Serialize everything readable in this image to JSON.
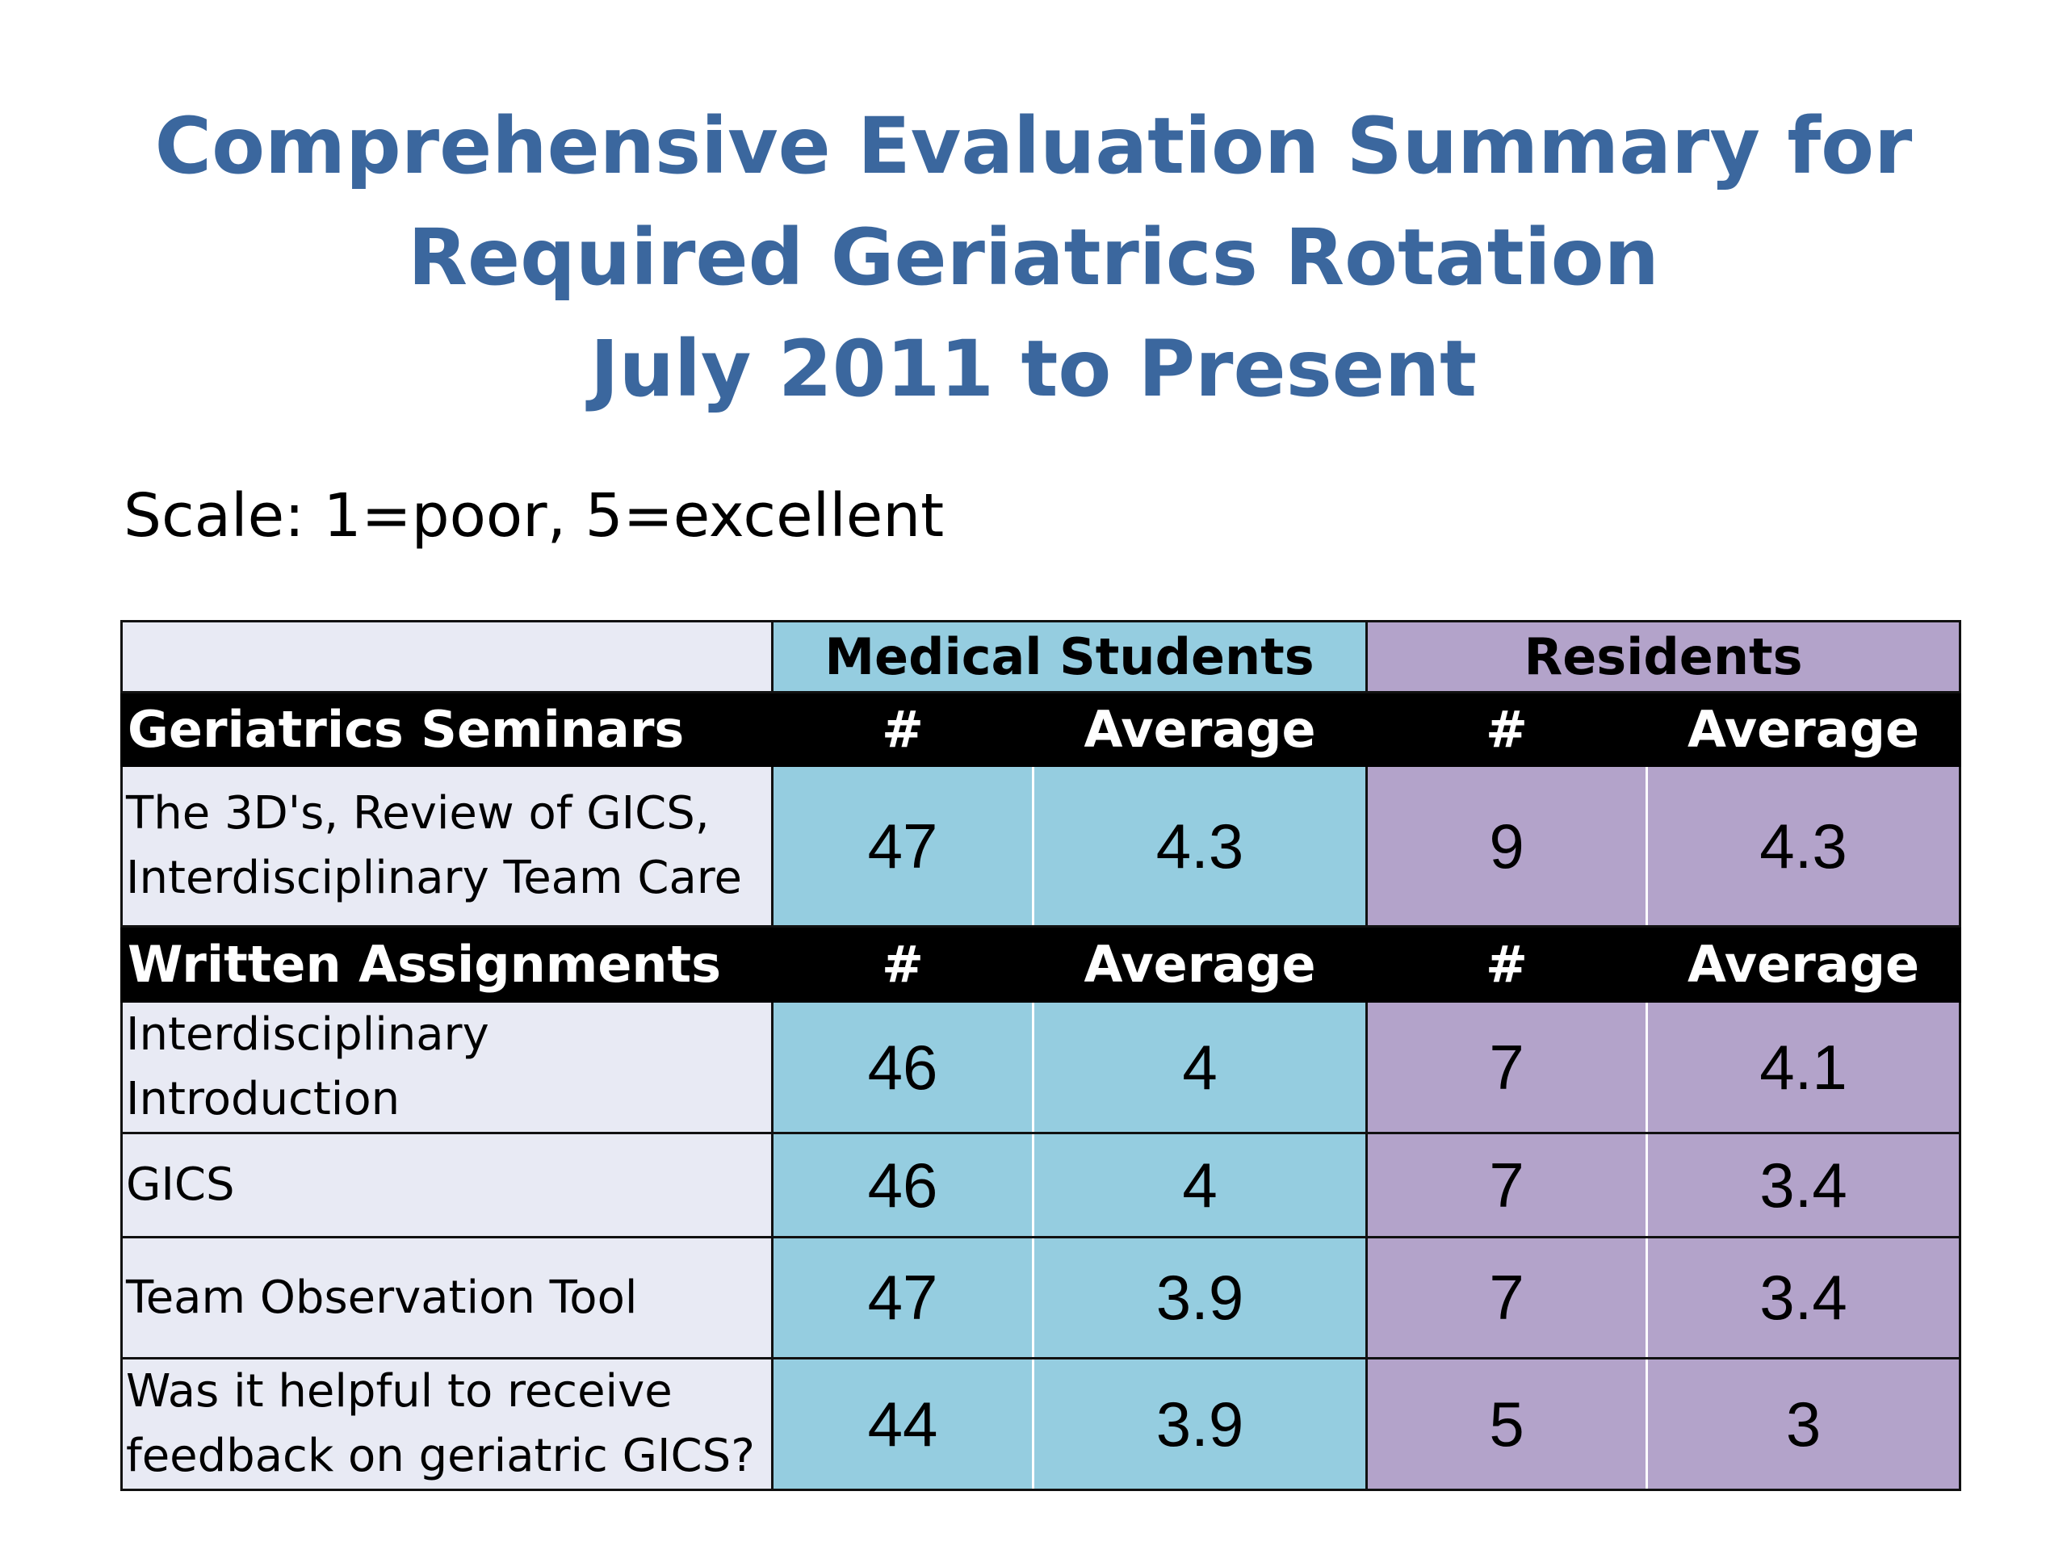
{
  "title": {
    "line1": "Comprehensive Evaluation Summary for",
    "line2": "Required Geriatrics Rotation",
    "line3": "July 2011 to Present"
  },
  "scale_text": "Scale:  1=poor, 5=excellent",
  "table": {
    "group_headers": {
      "medical_students": "Medical Students",
      "residents": "Residents"
    },
    "seminars": {
      "header": [
        "Geriatrics Seminars",
        "#",
        "Average",
        "#",
        "Average"
      ],
      "rows": [
        {
          "label_line1": "The 3D's, Review of GICS,",
          "label_line2": "Interdisciplinary Team Care",
          "ms_count": "47",
          "ms_avg": "4.3",
          "res_count": "9",
          "res_avg": "4.3"
        }
      ]
    },
    "assignments": {
      "header": [
        "Written Assignments",
        "#",
        "Average",
        "#",
        "Average"
      ],
      "rows": [
        {
          "label_line1": "Interdisciplinary Introduction",
          "label_line2": "",
          "ms_count": "46",
          "ms_avg": "4",
          "res_count": "7",
          "res_avg": "4.1"
        },
        {
          "label_line1": "GICS",
          "label_line2": "",
          "ms_count": "46",
          "ms_avg": "4",
          "res_count": "7",
          "res_avg": "3.4"
        },
        {
          "label_line1": "Team Observation Tool",
          "label_line2": "",
          "ms_count": "47",
          "ms_avg": "3.9",
          "res_count": "7",
          "res_avg": "3.4"
        },
        {
          "label_line1": "Was it helpful to receive",
          "label_line2": "feedback on geriatric GICS?",
          "ms_count": "44",
          "ms_avg": "3.9",
          "res_count": "5",
          "res_avg": "3"
        }
      ]
    }
  }
}
